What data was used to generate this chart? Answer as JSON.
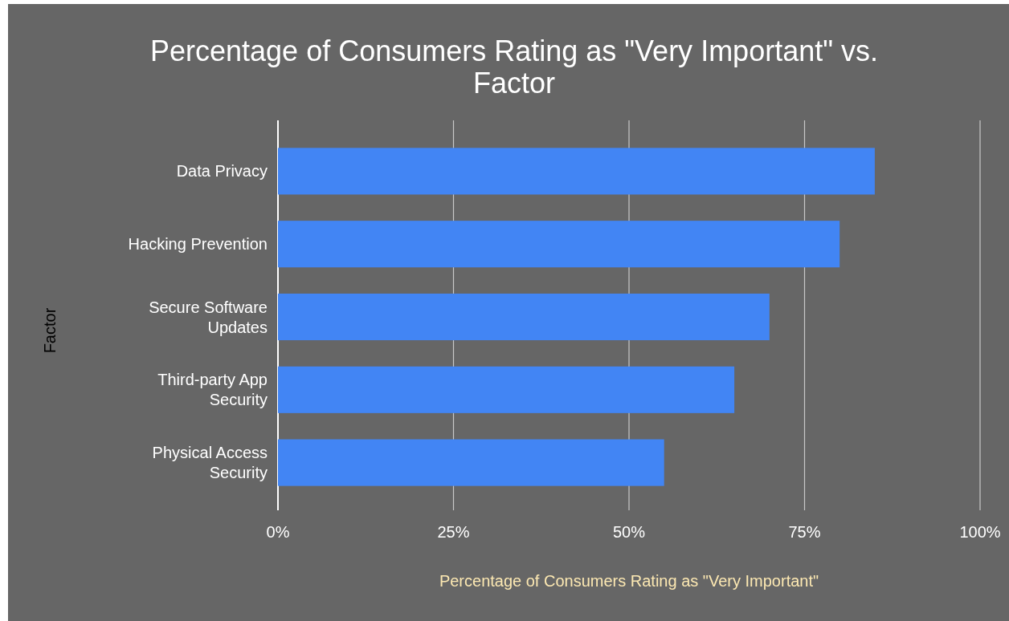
{
  "chart_data": {
    "type": "bar",
    "orientation": "horizontal",
    "title": "Percentage of Consumers Rating as \"Very Important\" vs. Factor",
    "xlabel": "Percentage of Consumers Rating as \"Very Important\"",
    "ylabel": "Factor",
    "categories": [
      "Data Privacy",
      "Hacking Prevention",
      "Secure Software Updates",
      "Third-party App Security",
      "Physical Access Security"
    ],
    "values": [
      85,
      80,
      70,
      65,
      55
    ],
    "color": "#4285f4",
    "xlim": [
      0,
      100
    ],
    "xticks": [
      {
        "value": 0,
        "label": "0%"
      },
      {
        "value": 25,
        "label": "25%"
      },
      {
        "value": 50,
        "label": "50%"
      },
      {
        "value": 75,
        "label": "75%"
      },
      {
        "value": 100,
        "label": "100%"
      }
    ],
    "grid": "x"
  }
}
